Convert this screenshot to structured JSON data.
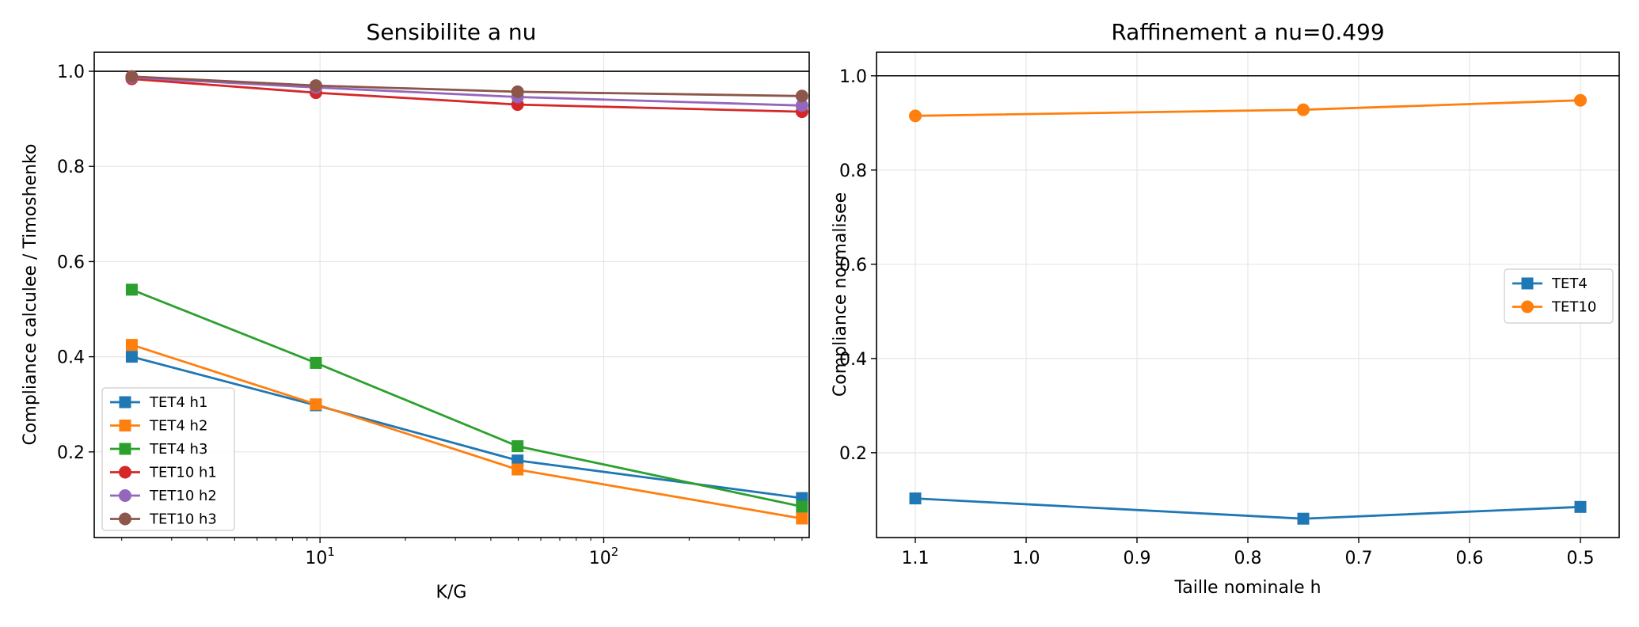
{
  "chart_data": [
    {
      "type": "line",
      "title": "Sensibilite a nu",
      "xlabel": "K/G",
      "ylabel": "Compliance calculee / Timoshenko",
      "xscale": "log",
      "xlim": [
        1.6,
        530
      ],
      "ylim": [
        0.02,
        1.04
      ],
      "x": [
        2.17,
        9.67,
        49.7,
        499.7
      ],
      "xticks": [
        {
          "value": 10,
          "base": "10",
          "exp": "1"
        },
        {
          "value": 100,
          "base": "10",
          "exp": "2"
        }
      ],
      "yticks": [
        {
          "value": 0.2,
          "label": "0.2"
        },
        {
          "value": 0.4,
          "label": "0.4"
        },
        {
          "value": 0.6,
          "label": "0.6"
        },
        {
          "value": 0.8,
          "label": "0.8"
        },
        {
          "value": 1.0,
          "label": "1.0"
        }
      ],
      "reference_line": 1.0,
      "grid": true,
      "legend_position": "lower-left",
      "series": [
        {
          "name": "TET4 h1",
          "marker": "square",
          "color": "#1f77b4",
          "values": [
            0.4,
            0.298,
            0.182,
            0.103
          ]
        },
        {
          "name": "TET4 h2",
          "marker": "square",
          "color": "#ff7f0e",
          "values": [
            0.425,
            0.3,
            0.163,
            0.06
          ]
        },
        {
          "name": "TET4 h3",
          "marker": "square",
          "color": "#2ca02c",
          "values": [
            0.541,
            0.387,
            0.212,
            0.085
          ]
        },
        {
          "name": "TET10 h1",
          "marker": "circle",
          "color": "#d62728",
          "values": [
            0.984,
            0.955,
            0.93,
            0.915
          ]
        },
        {
          "name": "TET10 h2",
          "marker": "circle",
          "color": "#9467bd",
          "values": [
            0.987,
            0.966,
            0.946,
            0.928
          ]
        },
        {
          "name": "TET10 h3",
          "marker": "circle",
          "color": "#8c564b",
          "values": [
            0.989,
            0.97,
            0.957,
            0.948
          ]
        }
      ]
    },
    {
      "type": "line",
      "title": "Raffinement a nu=0.499",
      "xlabel": "Taille nominale h",
      "ylabel": "Compliance normalisee",
      "xlim": [
        1.135,
        0.465
      ],
      "ylim": [
        0.02,
        1.05
      ],
      "x": [
        1.1,
        0.75,
        0.5
      ],
      "xticks": [
        {
          "value": 1.1,
          "label": "1.1"
        },
        {
          "value": 1.0,
          "label": "1.0"
        },
        {
          "value": 0.9,
          "label": "0.9"
        },
        {
          "value": 0.8,
          "label": "0.8"
        },
        {
          "value": 0.7,
          "label": "0.7"
        },
        {
          "value": 0.6,
          "label": "0.6"
        },
        {
          "value": 0.5,
          "label": "0.5"
        }
      ],
      "yticks": [
        {
          "value": 0.2,
          "label": "0.2"
        },
        {
          "value": 0.4,
          "label": "0.4"
        },
        {
          "value": 0.6,
          "label": "0.6"
        },
        {
          "value": 0.8,
          "label": "0.8"
        },
        {
          "value": 1.0,
          "label": "1.0"
        }
      ],
      "reference_line": 1.0,
      "grid": true,
      "legend_position": "center-right",
      "series": [
        {
          "name": "TET4",
          "marker": "square",
          "color": "#1f77b4",
          "values": [
            0.103,
            0.06,
            0.085
          ]
        },
        {
          "name": "TET10",
          "marker": "circle",
          "color": "#ff7f0e",
          "values": [
            0.915,
            0.928,
            0.948
          ]
        }
      ]
    }
  ]
}
